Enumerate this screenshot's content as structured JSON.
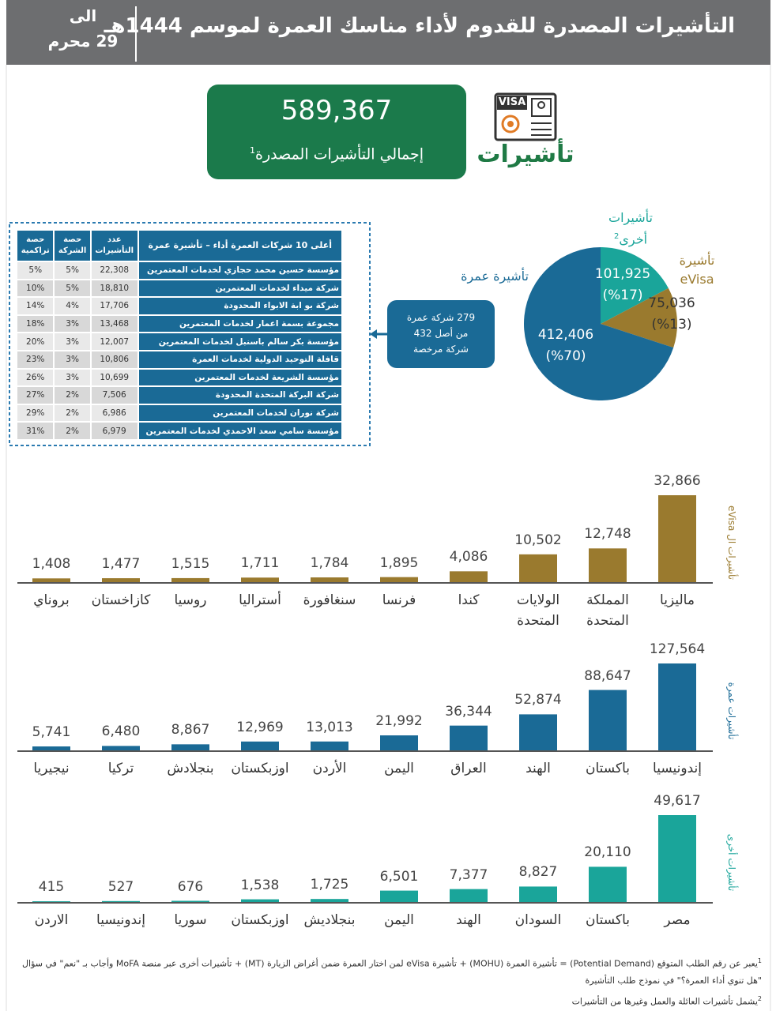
{
  "header": {
    "title": "التأشيرات المصدرة للقدوم لأداء مناسك العمرة لموسم 1444هـ",
    "date_top": "الى",
    "date_bottom": "29 محرم"
  },
  "kpi": {
    "value": "589,367",
    "label": "إجمالي التأشيرات المصدرة",
    "note": "1",
    "icon_text": "VISA",
    "icon_label": "تأشيرات"
  },
  "callout": {
    "lines": [
      "279 شركة عمرة",
      "من أصل 432",
      "شركة مرخصة"
    ]
  },
  "table": {
    "columns": [
      "أعلى 10 شركات العمرة أداء – تأشيرة عمرة",
      "عدد التأشيرات",
      "حصة الشركة",
      "حصة تراكمية"
    ],
    "rows": [
      [
        "مؤسسة حسين محمد حجازي لخدمات المعتمرين",
        "22,308",
        "5%",
        "5%"
      ],
      [
        "شركة ميداء لخدمات المعتمرين",
        "18,810",
        "5%",
        "10%"
      ],
      [
        "شركة بو ابة الابواء المحدودة",
        "17,706",
        "4%",
        "14%"
      ],
      [
        "مجموعة بسمة اعمار لخدمات المعتمرين",
        "13,468",
        "3%",
        "18%"
      ],
      [
        "مؤسسة بكر سالم باسنبل لخدمات المعتمرين",
        "12,007",
        "3%",
        "20%"
      ],
      [
        "قافلة التوحيد الدولية لخدمات العمرة",
        "10,806",
        "3%",
        "23%"
      ],
      [
        "مؤسسة الشريعة لخدمات المعتمرين",
        "10,699",
        "3%",
        "26%"
      ],
      [
        "شركة البركة المتحدة المحدودة",
        "7,506",
        "2%",
        "27%"
      ],
      [
        "شركة نوران لخدمات المعتمرين",
        "6,986",
        "2%",
        "29%"
      ],
      [
        "مؤسسة سامي سعد الاحمدي لخدمات المعتمرين",
        "6,979",
        "2%",
        "31%"
      ]
    ]
  },
  "chart_data": [
    {
      "type": "pie",
      "categories": [
        "تأشيرات أخرى",
        "تأشيرة eVisa",
        "تأشيرة عمرة"
      ],
      "other_note": "2",
      "values": [
        101925,
        75036,
        412406
      ],
      "value_labels": [
        "101,925",
        "75,036",
        "412,406"
      ],
      "percent_labels": [
        "(%17)",
        "(%13)",
        "(%70)"
      ],
      "colors": [
        "#1aa59a",
        "#9a7a2e",
        "#1a6a96"
      ]
    },
    {
      "type": "bar",
      "axis_title": "تأشيرات ال eVisa",
      "color": "#9a7a2e",
      "categories": [
        "ماليزيا",
        "المملكة المتحدة",
        "الولايات المتحدة",
        "كندا",
        "فرنسا",
        "سنغافورة",
        "أستراليا",
        "روسيا",
        "كازاخستان",
        "بروناي"
      ],
      "values": [
        32866,
        12748,
        10502,
        4086,
        1895,
        1784,
        1711,
        1515,
        1477,
        1408
      ],
      "value_labels": [
        "32,866",
        "12,748",
        "10,502",
        "4,086",
        "1,895",
        "1,784",
        "1,711",
        "1,515",
        "1,477",
        "1,408"
      ]
    },
    {
      "type": "bar",
      "axis_title": "تأشيرات عمرة",
      "color": "#1a6a96",
      "categories": [
        "إندونيسيا",
        "باكستان",
        "الهند",
        "العراق",
        "اليمن",
        "الأردن",
        "اوزبكستان",
        "بنجلادش",
        "تركيا",
        "نيجيريا"
      ],
      "values": [
        127564,
        88647,
        52874,
        36344,
        21992,
        13013,
        12969,
        8867,
        6480,
        5741
      ],
      "value_labels": [
        "127,564",
        "88,647",
        "52,874",
        "36,344",
        "21,992",
        "13,013",
        "12,969",
        "8,867",
        "6,480",
        "5,741"
      ]
    },
    {
      "type": "bar",
      "axis_title": "تأشيرات أخرى",
      "color": "#1aa59a",
      "categories": [
        "مصر",
        "باكستان",
        "السودان",
        "الهند",
        "اليمن",
        "بنجلاديش",
        "اوزبكستان",
        "سوريا",
        "إندونيسيا",
        "الاردن"
      ],
      "values": [
        49617,
        20110,
        8827,
        7377,
        6501,
        1725,
        1538,
        676,
        527,
        415
      ],
      "value_labels": [
        "49,617",
        "20,110",
        "8,827",
        "7,377",
        "6,501",
        "1,725",
        "1,538",
        "676",
        "527",
        "415"
      ]
    }
  ],
  "footnotes": [
    {
      "mark": "1",
      "text": "يعبر عن رقم الطلب المتوقع (Potential Demand) = تأشيرة العمرة (MOHU) + تأشيرة eVisa لمن اختار العمرة ضمن أغراض الزيارة (MT) + تأشيرات أخرى عبر منصة MoFA وأجاب بـ \"نعم\" في سؤال \"هل تنوي أداء العمرة؟\" في نموذج طلب التأشيرة"
    },
    {
      "mark": "2",
      "text": "يشمل تأشيرات العائلة والعمل وغيرها من التأشيرات"
    }
  ]
}
